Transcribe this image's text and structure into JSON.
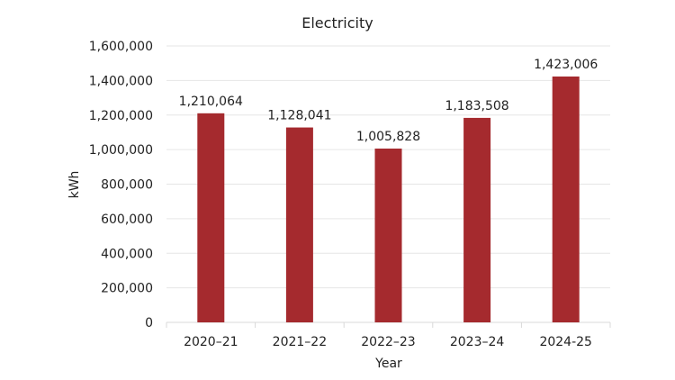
{
  "chart_data": {
    "type": "bar",
    "title": "Electricity",
    "xlabel": "Year",
    "ylabel": "kWh",
    "categories": [
      "2020–21",
      "2021–22",
      "2022–23",
      "2023–24",
      "2024-25"
    ],
    "values": [
      1210064,
      1128041,
      1005828,
      1183508,
      1423006
    ],
    "data_labels": [
      "1,210,064",
      "1,128,041",
      "1,005,828",
      "1,183,508",
      "1,423,006"
    ],
    "ylim": [
      0,
      1600000
    ],
    "yticks": [
      "0",
      "200,000",
      "400,000",
      "600,000",
      "800,000",
      "1,000,000",
      "1,200,000",
      "1,400,000",
      "1,600,000"
    ],
    "grid": true,
    "legend": "none",
    "bar_color": "#a52a2e"
  }
}
